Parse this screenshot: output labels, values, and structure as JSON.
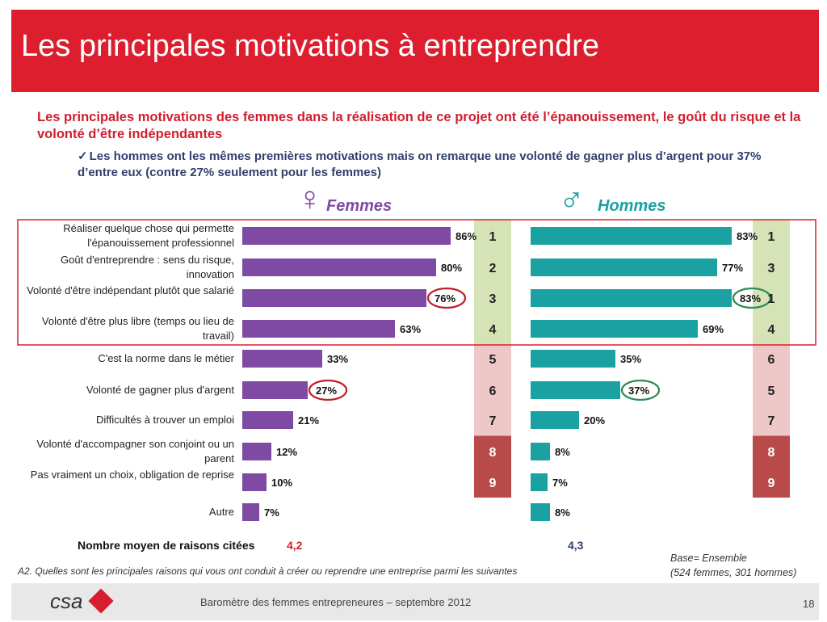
{
  "slide": {
    "title": "Les principales motivations à entreprendre",
    "headline": "Les principales motivations des femmes dans la réalisation de ce projet ont été l’épanouissement, le goût du risque et la volonté d’être indépendantes",
    "subline_check": "✓",
    "subline": "Les hommes ont les mêmes premières motivations mais on remarque une volonté de gagner plus d’argent pour 37% d’entre eux (contre 27% seulement pour les femmes)",
    "footer_text": "Baromètre des femmes entrepreneures –  septembre 2012",
    "page_number": "18",
    "logo": "csa",
    "question": "A2. Quelles sont les principales raisons qui vous ont conduit à créer ou reprendre une entreprise parmi les suivantes",
    "base_line1": "Base= Ensemble",
    "base_line2": "(524  femmes, 301 hommes)",
    "avg_label": "Nombre moyen de raisons citées",
    "avg_femmes": "4,2",
    "avg_hommes": "4,3",
    "colors": {
      "red_band": "#dc1e2e",
      "femmes": "#7e4aa3",
      "hommes": "#1aa1a1",
      "rank_green": "#d6e3b6",
      "rank_pink": "#eec7c7",
      "rank_dark": "#b84a4a",
      "highlight_red": "#c01f2c",
      "highlight_green": "#2e8a57"
    }
  },
  "chart_data": {
    "type": "bar",
    "orientation": "horizontal",
    "categories": [
      "Réaliser quelque chose qui  permette l'épanouissement professionnel",
      "Goût d'entreprendre : sens du risque, innovation",
      "Volonté d'être indépendant plutôt que salarié",
      "Volonté d'être plus libre (temps ou lieu de travail)",
      "C'est la norme dans le métier",
      "Volonté de gagner plus d'argent",
      "Difficultés à trouver un emploi",
      "Volonté d'accompagner son conjoint ou un parent",
      "Pas vraiment un choix, obligation de reprise",
      "Autre"
    ],
    "series": [
      {
        "name": "Femmes",
        "symbol": "♀",
        "values": [
          86,
          80,
          76,
          63,
          33,
          27,
          21,
          12,
          10,
          7
        ],
        "labels": [
          "86%",
          "80%",
          "76%",
          "63%",
          "33%",
          "27%",
          "21%",
          "12%",
          "10%",
          "7%"
        ],
        "ranks": [
          "1",
          "2",
          "3",
          "4",
          "5",
          "6",
          "7",
          "8",
          "9",
          ""
        ],
        "circled": [
          2,
          5
        ]
      },
      {
        "name": "Hommes",
        "symbol": "♂",
        "values": [
          83,
          77,
          83,
          69,
          35,
          37,
          20,
          8,
          7,
          8
        ],
        "labels": [
          "83%",
          "77%",
          "83%",
          "69%",
          "35%",
          "37%",
          "20%",
          "8%",
          "7%",
          "8%"
        ],
        "ranks": [
          "1",
          "3",
          "1",
          "4",
          "6",
          "5",
          "7",
          "8",
          "9",
          ""
        ],
        "circled": [
          2,
          5
        ]
      }
    ],
    "xlim": [
      0,
      100
    ],
    "grid": false,
    "legend": "top"
  }
}
